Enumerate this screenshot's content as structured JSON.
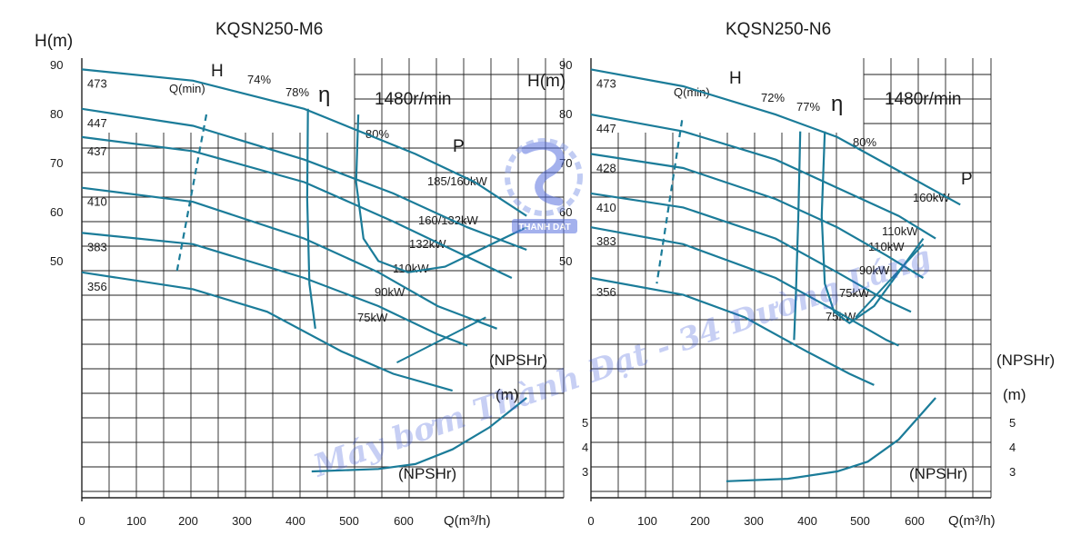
{
  "colors": {
    "curve": "#1b7c99",
    "grid": "#222222",
    "text": "#1a1a1a",
    "watermark": "#3b57d9",
    "logo": "#4a62d8"
  },
  "watermark": {
    "text": "Máy bơm Thành Đạt - 34 Đường Láng",
    "logo_text": "THANH DAT"
  },
  "chart_data": [
    {
      "type": "line",
      "title": "KQSN250-M6",
      "speed_label": "1480r/min",
      "ylabel": "H(m)",
      "xlabel": "Q(m³/h)",
      "npsh_label": "(NPSHr)",
      "npsh_unit": "(m)",
      "x_ticks": [
        "0",
        "100",
        "200",
        "300",
        "400",
        "500",
        "600"
      ],
      "y_ticks": [
        "90",
        "80",
        "70",
        "60",
        "50"
      ],
      "npsh_ticks": [
        "5",
        "4",
        "3"
      ],
      "xlim": [
        0,
        650
      ],
      "ylim": [
        12,
        90
      ],
      "grid": true,
      "head_curves": [
        {
          "diameter": "473",
          "points": [
            [
              0,
              88
            ],
            [
              150,
              86
            ],
            [
              300,
              81
            ],
            [
              450,
              73
            ],
            [
              530,
              68
            ],
            [
              600,
              62
            ]
          ]
        },
        {
          "diameter": "447",
          "points": [
            [
              0,
              81
            ],
            [
              150,
              78
            ],
            [
              300,
              72
            ],
            [
              420,
              66
            ],
            [
              520,
              60
            ],
            [
              600,
              56
            ]
          ]
        },
        {
          "diameter": "437",
          "points": [
            [
              0,
              76
            ],
            [
              150,
              73.5
            ],
            [
              300,
              68
            ],
            [
              420,
              61
            ],
            [
              500,
              56
            ],
            [
              580,
              51
            ]
          ]
        },
        {
          "diameter": "410",
          "points": [
            [
              0,
              67
            ],
            [
              150,
              64.5
            ],
            [
              300,
              58
            ],
            [
              400,
              52
            ],
            [
              480,
              46
            ],
            [
              560,
              42
            ]
          ]
        },
        {
          "diameter": "383",
          "points": [
            [
              0,
              59
            ],
            [
              150,
              57
            ],
            [
              300,
              51
            ],
            [
              400,
              46
            ],
            [
              480,
              41
            ],
            [
              520,
              39
            ]
          ]
        },
        {
          "diameter": "356",
          "points": [
            [
              0,
              52
            ],
            [
              150,
              49
            ],
            [
              250,
              45
            ],
            [
              350,
              38
            ],
            [
              420,
              34
            ],
            [
              500,
              31
            ]
          ]
        }
      ],
      "efficiency_curves": [
        {
          "label": "74%",
          "points": [
            [
              305,
              81
            ],
            [
              304,
              65
            ],
            [
              307,
              50
            ],
            [
              315,
              42
            ]
          ]
        },
        {
          "label": "78%",
          "points": [
            [
              373,
              80
            ],
            [
              370,
              68
            ],
            [
              380,
              58
            ],
            [
              400,
              54
            ],
            [
              440,
              52
            ],
            [
              490,
              53
            ],
            [
              600,
              60
            ]
          ]
        },
        {
          "label": "80%",
          "points": []
        }
      ],
      "min_flow": {
        "label": "Q(min)",
        "points": [
          [
            168,
            80
          ],
          [
            128,
            52
          ]
        ]
      },
      "power_labels": [
        "185/160kW",
        "160/132kW",
        "132kW",
        "110kW",
        "90kW",
        "75kW"
      ],
      "motor_line": [
        [
          425,
          36
        ],
        [
          545,
          44
        ]
      ],
      "npsh_values": {
        "q": [
          310,
          400,
          450,
          500,
          550,
          600
        ],
        "npsh": [
          3.0,
          3.1,
          3.3,
          3.9,
          4.8,
          6.0
        ]
      },
      "labels": {
        "head": "H",
        "eta": "η",
        "power": "P"
      }
    },
    {
      "type": "line",
      "title": "KQSN250-N6",
      "speed_label": "1480r/min",
      "ylabel": "H(m)",
      "xlabel": "Q(m³/h)",
      "npsh_label": "(NPSHr)",
      "npsh_unit": "(m)",
      "x_ticks": [
        "0",
        "100",
        "200",
        "300",
        "400",
        "500",
        "600"
      ],
      "y_ticks": [
        "90",
        "80",
        "70",
        "60",
        "50"
      ],
      "npsh_ticks": [
        "5",
        "4",
        "3"
      ],
      "xlim": [
        0,
        650
      ],
      "ylim": [
        12,
        90
      ],
      "grid": true,
      "head_curves": [
        {
          "diameter": "473",
          "points": [
            [
              0,
              88
            ],
            [
              150,
              85
            ],
            [
              300,
              80
            ],
            [
              400,
              76
            ],
            [
              500,
              70
            ],
            [
              600,
              64
            ]
          ]
        },
        {
          "diameter": "447",
          "points": [
            [
              0,
              80
            ],
            [
              150,
              77
            ],
            [
              300,
              72
            ],
            [
              400,
              67
            ],
            [
              500,
              62
            ],
            [
              560,
              58
            ]
          ]
        },
        {
          "diameter": "428",
          "points": [
            [
              0,
              73
            ],
            [
              150,
              70.5
            ],
            [
              300,
              65
            ],
            [
              400,
              60
            ],
            [
              480,
              55
            ],
            [
              540,
              51
            ]
          ]
        },
        {
          "diameter": "410",
          "points": [
            [
              0,
              66
            ],
            [
              150,
              63.5
            ],
            [
              300,
              58
            ],
            [
              400,
              52
            ],
            [
              480,
              47
            ],
            [
              520,
              45
            ]
          ]
        },
        {
          "diameter": "383",
          "points": [
            [
              0,
              60
            ],
            [
              150,
              57
            ],
            [
              300,
              51
            ],
            [
              400,
              45
            ],
            [
              480,
              40
            ],
            [
              500,
              39
            ]
          ]
        },
        {
          "diameter": "356",
          "points": [
            [
              0,
              51
            ],
            [
              150,
              48
            ],
            [
              250,
              44
            ],
            [
              350,
              38
            ],
            [
              420,
              34
            ],
            [
              460,
              32
            ]
          ]
        }
      ],
      "efficiency_curves": [
        {
          "label": "72%",
          "points": [
            [
              340,
              77
            ],
            [
              337,
              62
            ],
            [
              333,
              48
            ],
            [
              330,
              40
            ]
          ]
        },
        {
          "label": "77%",
          "points": [
            [
              380,
              77
            ],
            [
              375,
              62
            ],
            [
              380,
              50
            ],
            [
              395,
              45
            ],
            [
              420,
              43
            ],
            [
              460,
              46
            ],
            [
              540,
              58
            ]
          ]
        },
        {
          "label": "80%",
          "points": []
        }
      ],
      "min_flow": {
        "label": "Q(min)",
        "points": [
          [
            148,
            79
          ],
          [
            107,
            50
          ]
        ]
      },
      "power_labels": [
        "160kW",
        "110kW",
        "110kW",
        "90kW",
        "75kW",
        "75kW"
      ],
      "motor_line": [
        [
          430,
          44
        ],
        [
          540,
          57
        ]
      ],
      "npsh_values": {
        "q": [
          220,
          320,
          400,
          450,
          500,
          560
        ],
        "npsh": [
          2.6,
          2.7,
          3.0,
          3.4,
          4.3,
          6.0
        ]
      },
      "labels": {
        "head": "H",
        "eta": "η",
        "power": "P"
      }
    }
  ]
}
